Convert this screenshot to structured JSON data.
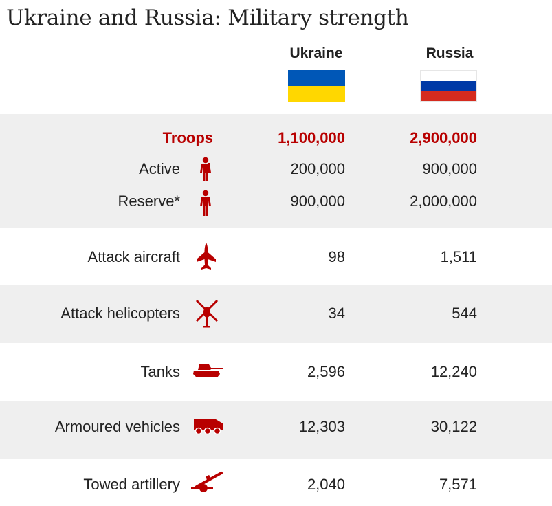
{
  "title": "Ukraine and Russia: Military strength",
  "columns": {
    "ukraine": "Ukraine",
    "russia": "Russia"
  },
  "colors": {
    "accent": "#b80000",
    "ukraine_flag": [
      "#0057b7",
      "#ffd700"
    ],
    "russia_flag": [
      "#ffffff",
      "#0039a6",
      "#d52b1e"
    ],
    "band": "#efefef"
  },
  "chart_data": {
    "type": "table",
    "title": "Ukraine and Russia: Military strength",
    "columns": [
      "Ukraine",
      "Russia"
    ],
    "rows": [
      {
        "category": "Troops",
        "icon": "",
        "ukraine": "1,100,000",
        "russia": "2,900,000"
      },
      {
        "category": "Active",
        "icon": "soldier-icon",
        "ukraine": "200,000",
        "russia": "900,000"
      },
      {
        "category": "Reserve*",
        "icon": "soldier-icon",
        "ukraine": "900,000",
        "russia": "2,000,000"
      },
      {
        "category": "Attack aircraft",
        "icon": "fighter-jet-icon",
        "ukraine": "98",
        "russia": "1,511"
      },
      {
        "category": "Attack helicopters",
        "icon": "helicopter-icon",
        "ukraine": "34",
        "russia": "544"
      },
      {
        "category": "Tanks",
        "icon": "tank-icon",
        "ukraine": "2,596",
        "russia": "12,240"
      },
      {
        "category": "Armoured vehicles",
        "icon": "armoured-vehicle-icon",
        "ukraine": "12,303",
        "russia": "30,122"
      },
      {
        "category": "Towed artillery",
        "icon": "towed-artillery-icon",
        "ukraine": "2,040",
        "russia": "7,571"
      }
    ]
  }
}
